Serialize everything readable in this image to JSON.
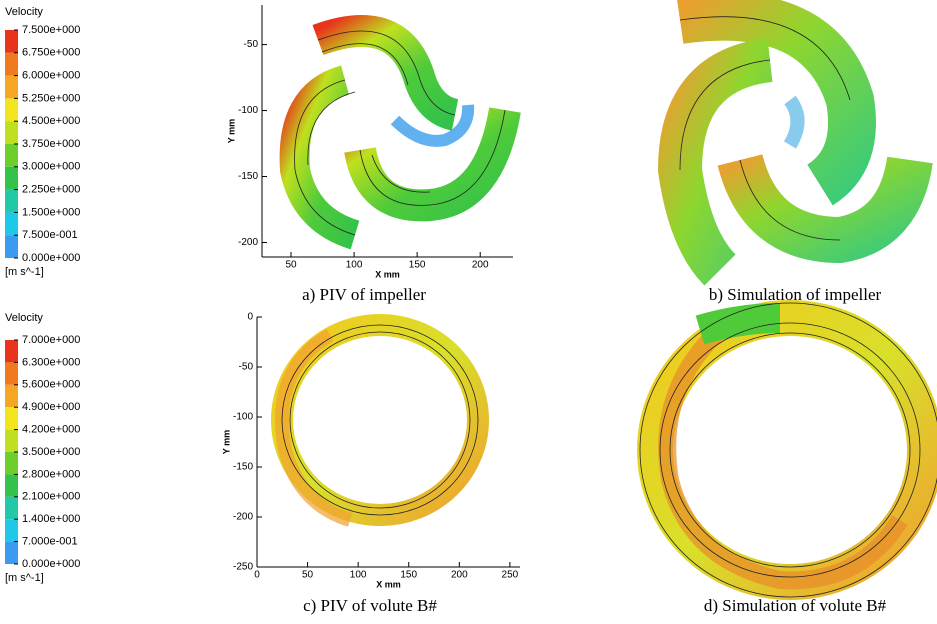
{
  "legends": [
    {
      "title": "Velocity",
      "labels": [
        "7.500e+000",
        "6.750e+000",
        "6.000e+000",
        "5.250e+000",
        "4.500e+000",
        "3.750e+000",
        "3.000e+000",
        "2.250e+000",
        "1.500e+000",
        "7.500e-001",
        "0.000e+000"
      ],
      "unit": "[m s^-1]",
      "colors": [
        "#e8341c",
        "#f27a1e",
        "#f5a623",
        "#f2e51e",
        "#bfe01e",
        "#6fcf2a",
        "#33c24a",
        "#22c9a8",
        "#1ec8e8",
        "#3a9bf0",
        "#1e50e8"
      ]
    },
    {
      "title": "Velocity",
      "labels": [
        "7.000e+000",
        "6.300e+000",
        "5.600e+000",
        "4.900e+000",
        "4.200e+000",
        "3.500e+000",
        "2.800e+000",
        "2.100e+000",
        "1.400e+000",
        "7.000e-001",
        "0.000e+000"
      ],
      "unit": "[m s^-1]",
      "colors": [
        "#e8341c",
        "#f27a1e",
        "#f5a623",
        "#f2e51e",
        "#bfe01e",
        "#6fcf2a",
        "#33c24a",
        "#22c9a8",
        "#1ec8e8",
        "#3a9bf0",
        "#1e50e8"
      ]
    }
  ],
  "panels": [
    {
      "caption": "a) PIV of impeller",
      "xlabel": "X mm",
      "ylabel": "Y mm",
      "xlim": [
        27,
        226
      ],
      "ylim": [
        -211,
        -20
      ],
      "xticks": [
        50,
        100,
        150,
        200
      ],
      "yticks": [
        -50,
        -100,
        -150,
        -200
      ]
    },
    {
      "caption": "b) Simulation of impeller"
    },
    {
      "caption": "c) PIV of volute B#",
      "xlabel": "X mm",
      "ylabel": "Y mm",
      "xlim": [
        0,
        260
      ],
      "ylim": [
        -250,
        0
      ],
      "xticks": [
        0,
        50,
        100,
        150,
        200,
        250
      ],
      "yticks": [
        0,
        -50,
        -100,
        -150,
        -200,
        -250
      ]
    },
    {
      "caption": "d) Simulation of volute B#"
    }
  ]
}
